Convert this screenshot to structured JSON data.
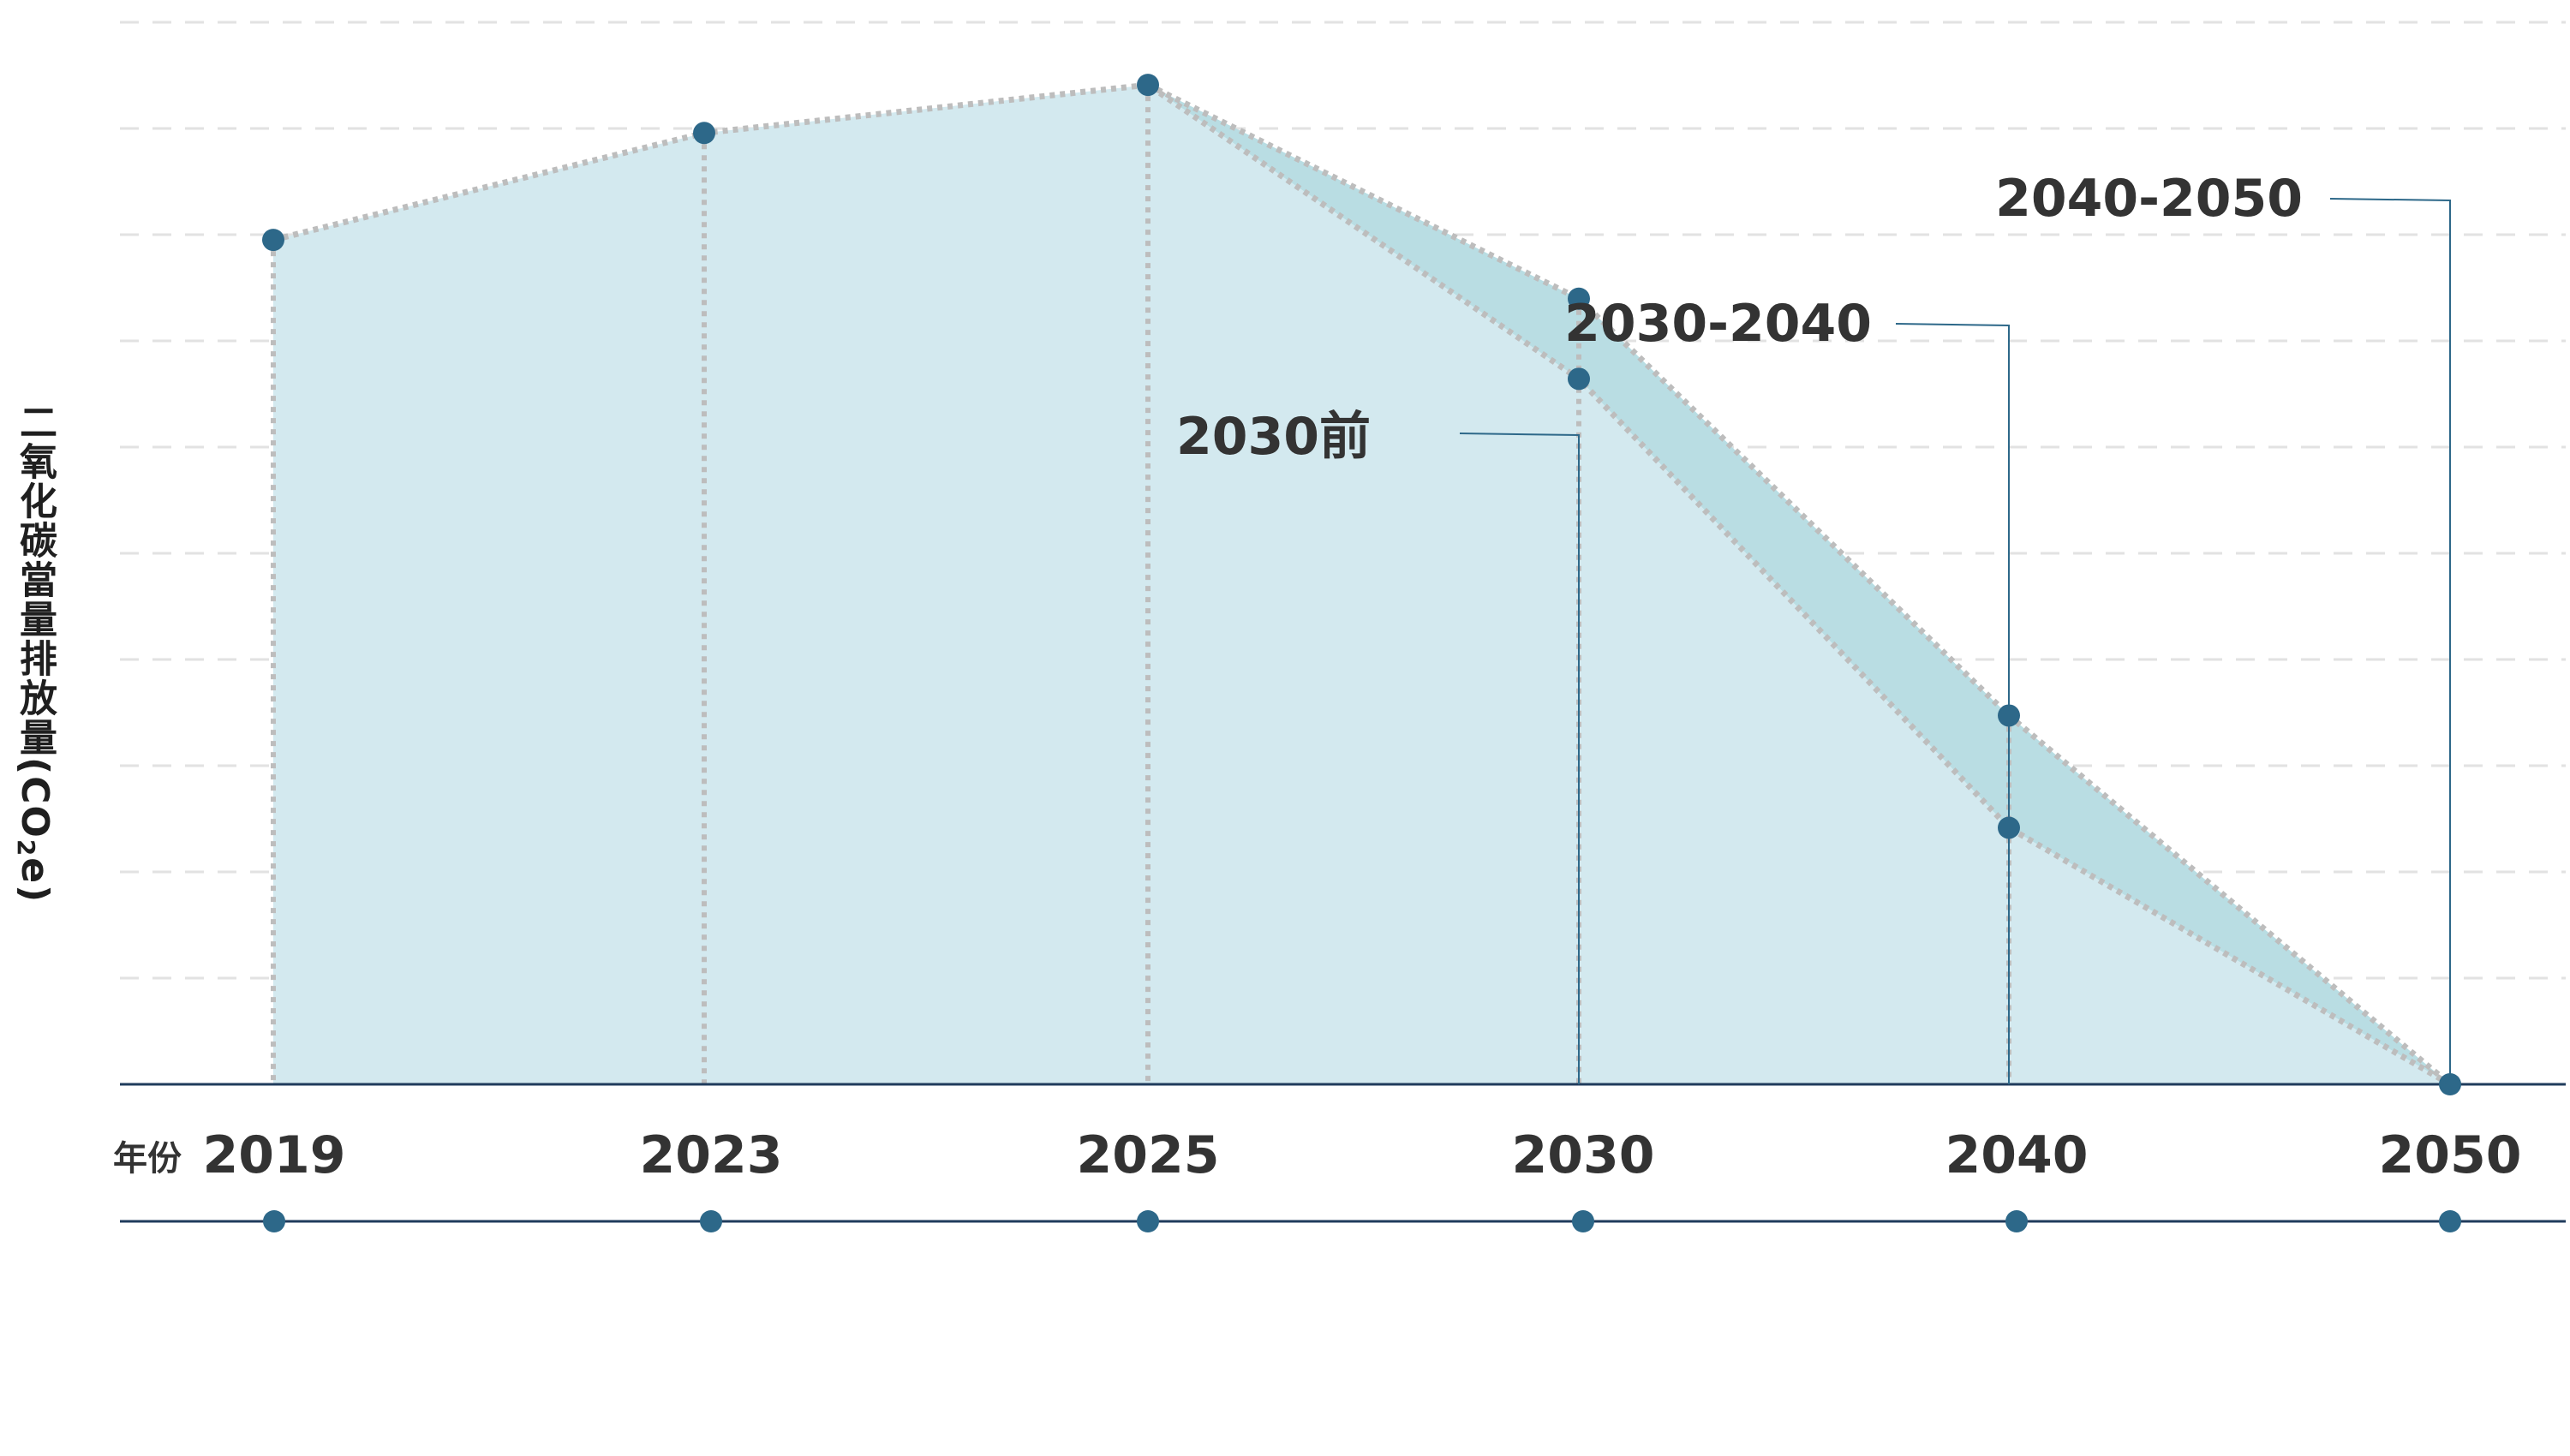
{
  "chart_data": {
    "type": "area",
    "ylabel_main": "二氧化碳當量排放量(CO",
    "ylabel_sub": "2",
    "ylabel_tail": "e)",
    "xlabel": "年份",
    "years": [
      "2019",
      "2023",
      "2025",
      "2030",
      "2040",
      "2050"
    ],
    "grid": true,
    "series": [
      {
        "x": [
          "2019",
          "2023",
          "2025",
          "2030",
          "2040",
          "2050"
        ],
        "values": [
          79,
          89,
          93.5,
          66,
          24,
          0
        ]
      },
      {
        "x": [
          "2025",
          "2030",
          "2040",
          "2050"
        ],
        "values": [
          93.5,
          73.5,
          34.5,
          0
        ]
      }
    ],
    "annotations": [
      {
        "label": "2030前",
        "year": "2030"
      },
      {
        "label": "2030-2040",
        "year": "2040"
      },
      {
        "label": "2040-2050",
        "year": "2050"
      }
    ],
    "ylim": [
      0,
      100
    ],
    "colors": {
      "area_light": "#d3e9ef",
      "area_dark": "#b9dde3",
      "dots": "#2d6889",
      "axis": "#1f3b5c",
      "grid": "#e2e2e2",
      "dotted": "#bdbdbd",
      "leader": "#2d6889",
      "text": "#333333"
    }
  }
}
